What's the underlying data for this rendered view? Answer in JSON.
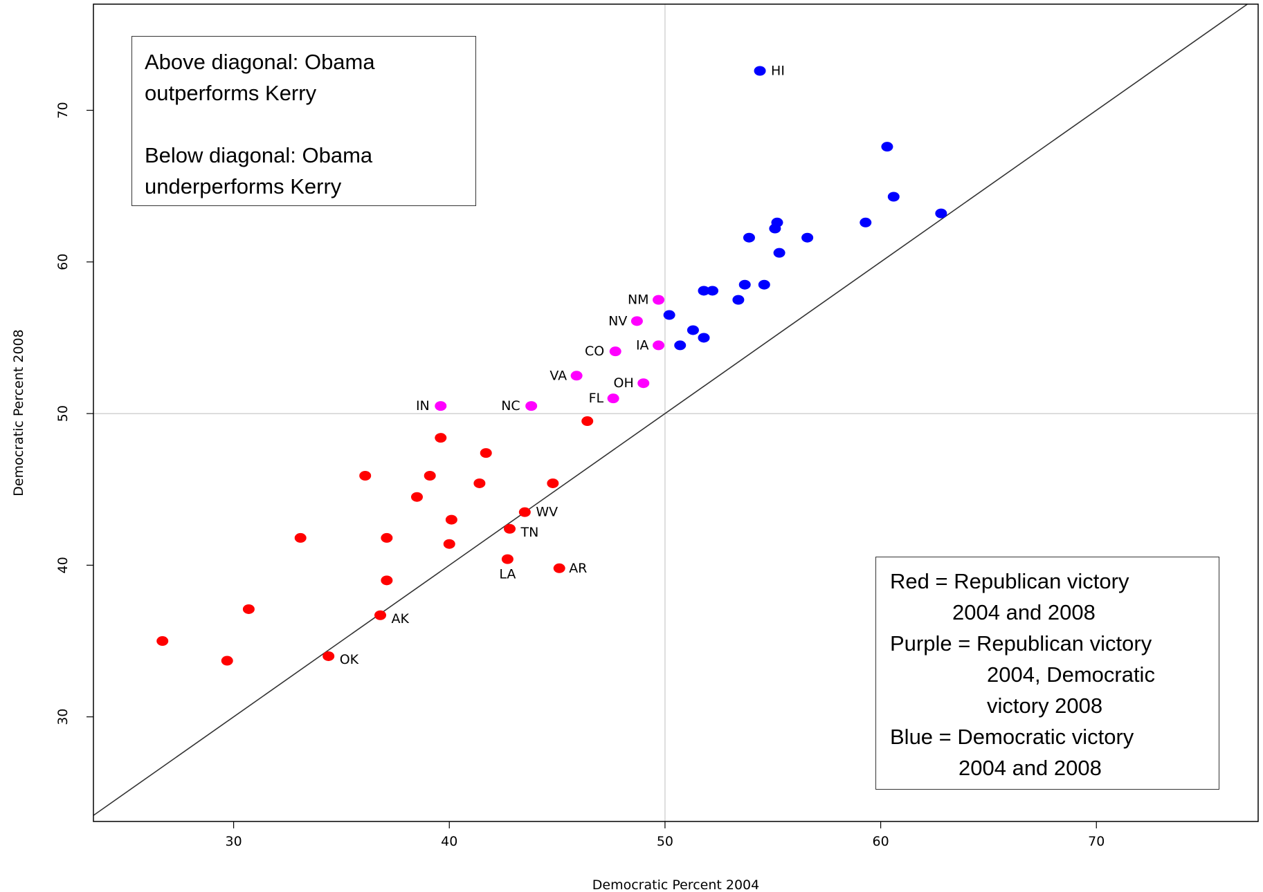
{
  "chart_data": {
    "type": "scatter",
    "xlabel": "Democratic Percent 2004",
    "ylabel": "Democratic Percent 2008",
    "xlim": [
      23.5,
      77.5
    ],
    "ylim": [
      23.1,
      77
    ],
    "xticks": [
      30,
      40,
      50,
      60,
      70
    ],
    "yticks": [
      30,
      40,
      50,
      60,
      70
    ],
    "reference_lines": {
      "diagonal": "y = x",
      "vertical_x": 50,
      "horizontal_y": 50
    },
    "colors": {
      "red": "#ff0000",
      "purple": "#ff00ff",
      "blue": "#0000ff",
      "grid": "#c8c8c8",
      "diagonal": "#333333"
    },
    "series": [
      {
        "name": "Red",
        "color": "#ff0000",
        "points": [
          {
            "x": 26.7,
            "y": 35.0,
            "label": ""
          },
          {
            "x": 29.7,
            "y": 33.7,
            "label": ""
          },
          {
            "x": 30.7,
            "y": 37.1,
            "label": ""
          },
          {
            "x": 33.1,
            "y": 41.8,
            "label": ""
          },
          {
            "x": 34.4,
            "y": 34.0,
            "label": "OK"
          },
          {
            "x": 36.1,
            "y": 45.9,
            "label": ""
          },
          {
            "x": 36.8,
            "y": 36.7,
            "label": "AK"
          },
          {
            "x": 37.1,
            "y": 41.8,
            "label": ""
          },
          {
            "x": 37.1,
            "y": 39.0,
            "label": ""
          },
          {
            "x": 38.5,
            "y": 44.5,
            "label": ""
          },
          {
            "x": 39.1,
            "y": 45.9,
            "label": ""
          },
          {
            "x": 39.6,
            "y": 48.4,
            "label": ""
          },
          {
            "x": 40.1,
            "y": 43.0,
            "label": ""
          },
          {
            "x": 40.0,
            "y": 41.4,
            "label": ""
          },
          {
            "x": 41.4,
            "y": 45.4,
            "label": ""
          },
          {
            "x": 41.7,
            "y": 47.4,
            "label": ""
          },
          {
            "x": 42.7,
            "y": 40.4,
            "label": "LA"
          },
          {
            "x": 42.8,
            "y": 42.4,
            "label": "TN"
          },
          {
            "x": 43.5,
            "y": 43.5,
            "label": "WV"
          },
          {
            "x": 44.8,
            "y": 45.4,
            "label": ""
          },
          {
            "x": 45.1,
            "y": 39.8,
            "label": "AR"
          },
          {
            "x": 46.4,
            "y": 49.5,
            "label": ""
          }
        ]
      },
      {
        "name": "Purple",
        "color": "#ff00ff",
        "points": [
          {
            "x": 39.6,
            "y": 50.5,
            "label": "IN"
          },
          {
            "x": 43.8,
            "y": 50.5,
            "label": "NC"
          },
          {
            "x": 45.9,
            "y": 52.5,
            "label": "VA"
          },
          {
            "x": 47.6,
            "y": 51.0,
            "label": "FL"
          },
          {
            "x": 47.7,
            "y": 54.1,
            "label": "CO"
          },
          {
            "x": 48.7,
            "y": 56.1,
            "label": "NV"
          },
          {
            "x": 49.0,
            "y": 52.0,
            "label": "OH"
          },
          {
            "x": 49.7,
            "y": 57.5,
            "label": "NM"
          },
          {
            "x": 49.7,
            "y": 54.5,
            "label": "IA"
          }
        ]
      },
      {
        "name": "Blue",
        "color": "#0000ff",
        "points": [
          {
            "x": 50.2,
            "y": 56.5,
            "label": ""
          },
          {
            "x": 50.7,
            "y": 54.5,
            "label": ""
          },
          {
            "x": 51.3,
            "y": 55.5,
            "label": ""
          },
          {
            "x": 51.8,
            "y": 55.0,
            "label": ""
          },
          {
            "x": 51.8,
            "y": 58.1,
            "label": ""
          },
          {
            "x": 52.2,
            "y": 58.1,
            "label": ""
          },
          {
            "x": 53.4,
            "y": 57.5,
            "label": ""
          },
          {
            "x": 53.7,
            "y": 58.5,
            "label": ""
          },
          {
            "x": 53.9,
            "y": 61.6,
            "label": ""
          },
          {
            "x": 54.4,
            "y": 72.6,
            "label": "HI"
          },
          {
            "x": 54.6,
            "y": 58.5,
            "label": ""
          },
          {
            "x": 55.1,
            "y": 62.2,
            "label": ""
          },
          {
            "x": 55.2,
            "y": 62.6,
            "label": ""
          },
          {
            "x": 55.3,
            "y": 60.6,
            "label": ""
          },
          {
            "x": 56.6,
            "y": 61.6,
            "label": ""
          },
          {
            "x": 59.3,
            "y": 62.6,
            "label": ""
          },
          {
            "x": 60.3,
            "y": 67.6,
            "label": ""
          },
          {
            "x": 60.6,
            "y": 64.3,
            "label": ""
          },
          {
            "x": 62.8,
            "y": 63.2,
            "label": ""
          }
        ]
      }
    ]
  },
  "annotations": {
    "top_box": {
      "line1": "Above diagonal: Obama",
      "line2": "outperforms Kerry",
      "line3": "Below diagonal: Obama",
      "line4": "underperforms Kerry"
    },
    "legend_box": {
      "line1": "Red = Republican victory",
      "line2": "2004 and 2008",
      "line3": "Purple =  Republican victory",
      "line4": "2004, Democratic",
      "line5": "victory 2008",
      "line6": "Blue = Democratic victory",
      "line7": "2004 and 2008"
    }
  }
}
